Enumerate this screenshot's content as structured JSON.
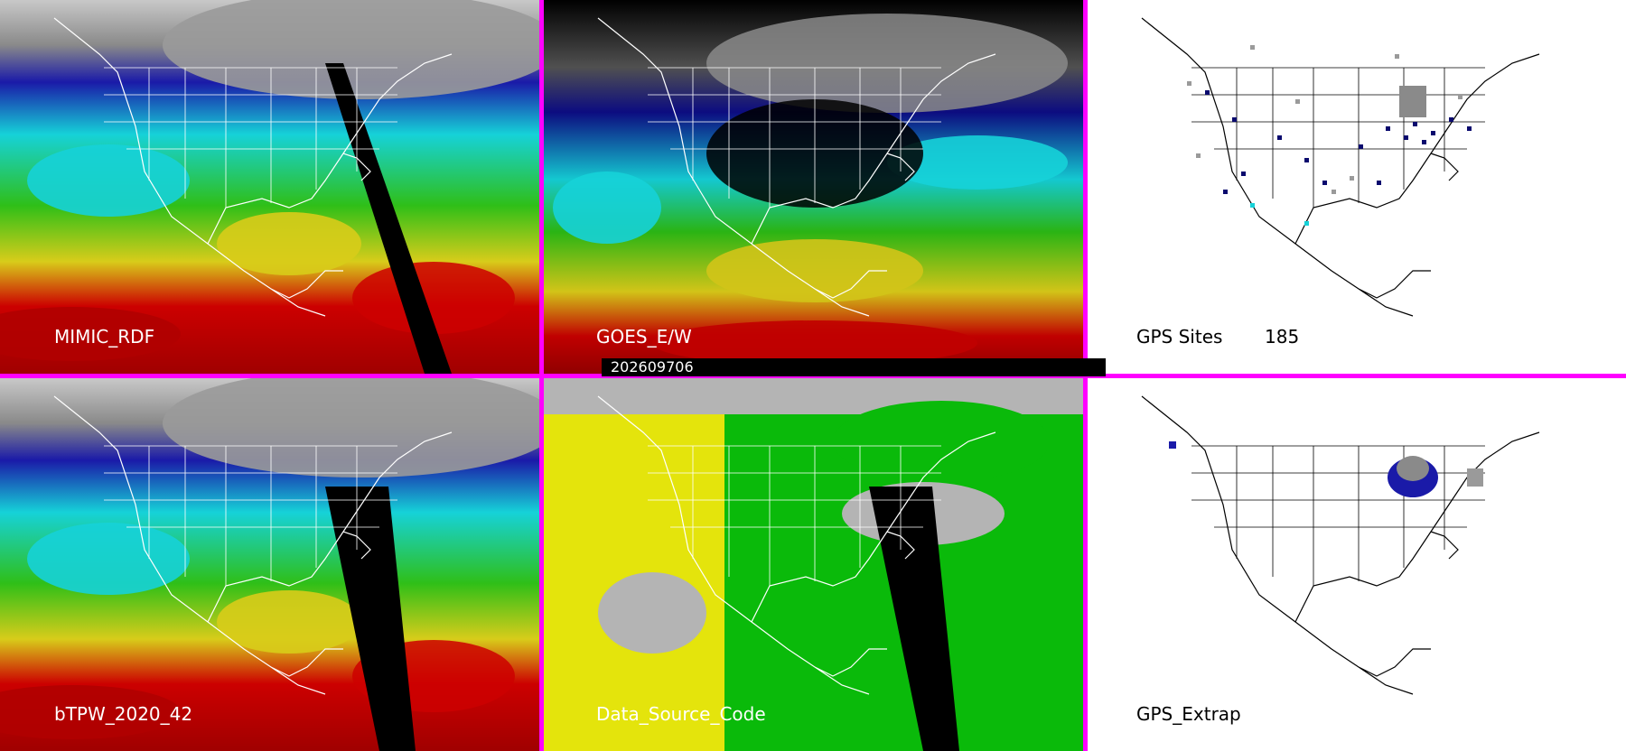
{
  "panels": {
    "top_left": {
      "label": "MIMIC_RDF"
    },
    "top_middle": {
      "label": "GOES_E/W"
    },
    "top_right": {
      "label": "GPS Sites",
      "count": "185"
    },
    "bottom_left": {
      "label": "bTPW_2020_42"
    },
    "bottom_middle": {
      "label": "Data_Source_Code"
    },
    "bottom_right": {
      "label": "GPS_Extrap"
    }
  },
  "timestamp": "202609706",
  "colors": {
    "divider": "#ff00ff",
    "red": "#cc0000",
    "yellow": "#d8cc1a",
    "green": "#2fbf18",
    "cyan": "#16d2d8",
    "blue": "#1a1aa8",
    "gray": "#b0b0b0",
    "data_yellow": "#e4e40c",
    "data_green": "#0aba0a",
    "data_gray": "#b4b4b4",
    "site_navy": "#0a0a6e",
    "site_gray": "#9a9a9a"
  }
}
